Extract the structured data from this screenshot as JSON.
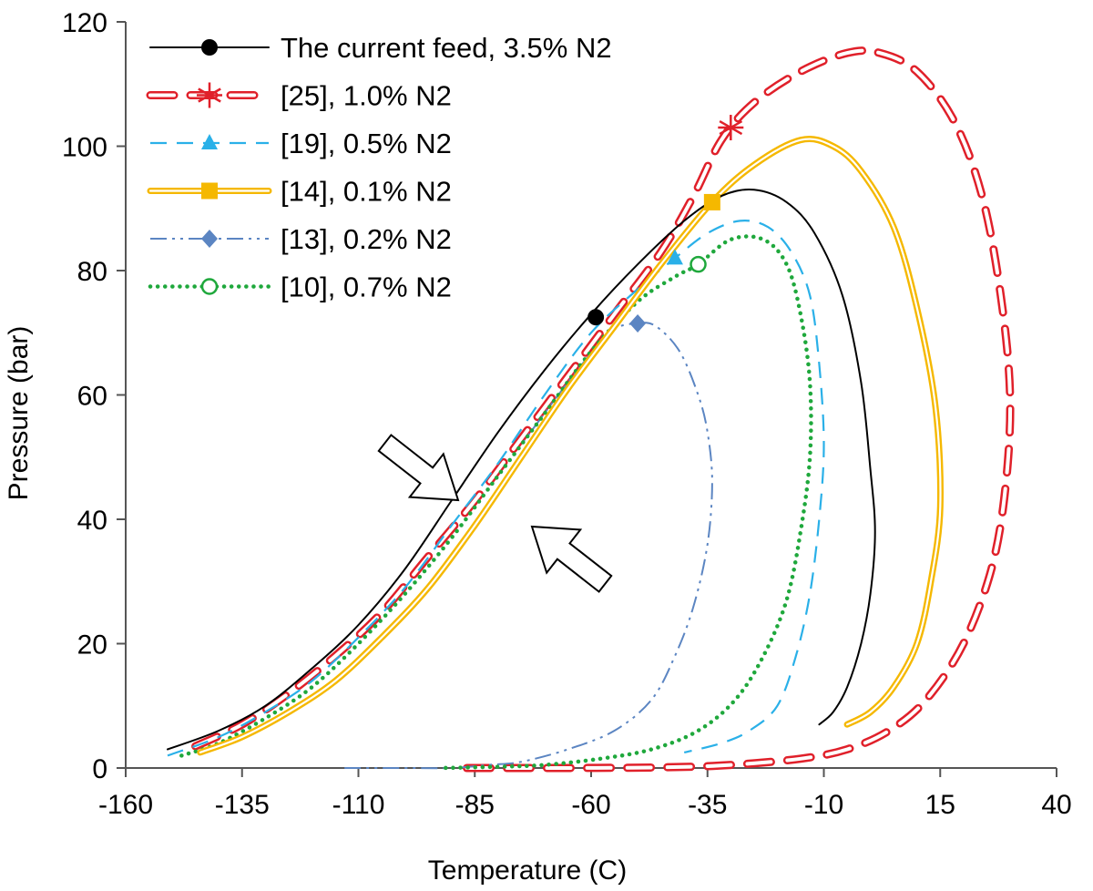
{
  "chart_data": {
    "type": "line",
    "title": "",
    "xlabel": "Temperature  (C)",
    "ylabel": "Pressure  (bar)",
    "xlim": [
      -160,
      40
    ],
    "ylim": [
      0,
      120
    ],
    "xticks": [
      -160,
      -135,
      -110,
      -85,
      -60,
      -35,
      -10,
      15,
      40
    ],
    "yticks": [
      0,
      20,
      40,
      60,
      80,
      100,
      120
    ],
    "grid": false,
    "legend_position": "top-left",
    "series": [
      {
        "name": "The current feed, 3.5% N2",
        "color": "#000000",
        "style": "solid",
        "marker": "circle",
        "critical_point": [
          -59,
          72.5
        ],
        "points": [
          [
            -151,
            3
          ],
          [
            -140,
            6
          ],
          [
            -130,
            10
          ],
          [
            -120,
            16
          ],
          [
            -110,
            23
          ],
          [
            -100,
            32
          ],
          [
            -90,
            43
          ],
          [
            -80,
            54
          ],
          [
            -70,
            64
          ],
          [
            -60,
            73
          ],
          [
            -50,
            81
          ],
          [
            -40,
            88
          ],
          [
            -32,
            92
          ],
          [
            -25,
            93
          ],
          [
            -18,
            91
          ],
          [
            -12,
            86
          ],
          [
            -6,
            76
          ],
          [
            -2,
            62
          ],
          [
            0,
            48
          ],
          [
            1,
            38
          ],
          [
            0,
            28
          ],
          [
            -2,
            20
          ],
          [
            -5,
            13
          ],
          [
            -8,
            9
          ],
          [
            -11,
            7
          ]
        ]
      },
      {
        "name": "[25], 1.0% N2",
        "color": "#e0202a",
        "style": "dashed-double",
        "marker": "asterisk",
        "critical_point": [
          -30,
          103
        ],
        "points": [
          [
            -145,
            3.5
          ],
          [
            -135,
            7
          ],
          [
            -125,
            12
          ],
          [
            -115,
            18
          ],
          [
            -105,
            25
          ],
          [
            -95,
            34
          ],
          [
            -85,
            43
          ],
          [
            -75,
            53
          ],
          [
            -65,
            63
          ],
          [
            -55,
            73
          ],
          [
            -45,
            83
          ],
          [
            -38,
            92
          ],
          [
            -32,
            101
          ],
          [
            -25,
            107
          ],
          [
            -15,
            112
          ],
          [
            -5,
            115
          ],
          [
            2,
            115
          ],
          [
            10,
            112
          ],
          [
            18,
            104
          ],
          [
            24,
            92
          ],
          [
            28,
            76
          ],
          [
            30,
            60
          ],
          [
            29,
            45
          ],
          [
            26,
            32
          ],
          [
            20,
            20
          ],
          [
            12,
            11
          ],
          [
            4,
            6
          ],
          [
            -5,
            3
          ],
          [
            -15,
            1.5
          ],
          [
            -30,
            0.5
          ],
          [
            -45,
            0.1
          ],
          [
            -70,
            0
          ],
          [
            -90,
            0
          ]
        ]
      },
      {
        "name": "[19], 0.5% N2",
        "color": "#2ab0e8",
        "style": "dashed",
        "marker": "triangle",
        "critical_point": [
          -42,
          82
        ],
        "points": [
          [
            -151,
            2
          ],
          [
            -140,
            5
          ],
          [
            -130,
            9
          ],
          [
            -120,
            14
          ],
          [
            -110,
            21
          ],
          [
            -100,
            29
          ],
          [
            -90,
            39
          ],
          [
            -80,
            49
          ],
          [
            -70,
            60
          ],
          [
            -60,
            70
          ],
          [
            -50,
            77
          ],
          [
            -42,
            82
          ],
          [
            -35,
            86
          ],
          [
            -28,
            88
          ],
          [
            -22,
            87
          ],
          [
            -17,
            83
          ],
          [
            -13,
            76
          ],
          [
            -11,
            65
          ],
          [
            -10,
            52
          ],
          [
            -11,
            40
          ],
          [
            -13,
            28
          ],
          [
            -16,
            18
          ],
          [
            -20,
            10
          ],
          [
            -26,
            6
          ],
          [
            -32,
            4
          ],
          [
            -40,
            2.5
          ]
        ]
      },
      {
        "name": "[14], 0.1% N2",
        "color": "#f5b800",
        "style": "double",
        "marker": "square",
        "critical_point": [
          -34,
          91
        ],
        "points": [
          [
            -144,
            2.5
          ],
          [
            -135,
            5
          ],
          [
            -125,
            9
          ],
          [
            -115,
            14
          ],
          [
            -105,
            21
          ],
          [
            -95,
            29
          ],
          [
            -85,
            39
          ],
          [
            -75,
            50
          ],
          [
            -65,
            61
          ],
          [
            -55,
            71
          ],
          [
            -45,
            81
          ],
          [
            -34,
            91
          ],
          [
            -25,
            97
          ],
          [
            -15,
            101
          ],
          [
            -8,
            100
          ],
          [
            -2,
            96
          ],
          [
            5,
            87
          ],
          [
            10,
            74
          ],
          [
            14,
            58
          ],
          [
            15,
            42
          ],
          [
            13,
            30
          ],
          [
            10,
            20
          ],
          [
            5,
            13
          ],
          [
            0,
            9
          ],
          [
            -5,
            7
          ]
        ]
      },
      {
        "name": "[13], 0.2% N2",
        "color": "#5b85c2",
        "style": "dashdotdot",
        "marker": "diamond",
        "critical_point": [
          -50,
          71.5
        ],
        "points": [
          [
            -113,
            0
          ],
          [
            -100,
            0
          ],
          [
            -90,
            0
          ],
          [
            -82,
            0.5
          ],
          [
            -75,
            1
          ],
          [
            -65,
            3
          ],
          [
            -55,
            6
          ],
          [
            -47,
            11
          ],
          [
            -42,
            18
          ],
          [
            -38,
            26
          ],
          [
            -35,
            36
          ],
          [
            -34,
            46
          ],
          [
            -35,
            54
          ],
          [
            -37,
            60
          ],
          [
            -41,
            67
          ],
          [
            -46,
            71
          ],
          [
            -50,
            71.5
          ],
          [
            -56,
            70
          ],
          [
            -65,
            62
          ],
          [
            -75,
            52
          ]
        ]
      },
      {
        "name": "[10], 0.7% N2",
        "color": "#1fa83c",
        "style": "dotted",
        "marker": "open-circle",
        "critical_point": [
          -37,
          81
        ],
        "points": [
          [
            -148,
            2
          ],
          [
            -140,
            4
          ],
          [
            -130,
            8
          ],
          [
            -120,
            13
          ],
          [
            -110,
            20
          ],
          [
            -100,
            28
          ],
          [
            -90,
            37
          ],
          [
            -80,
            47
          ],
          [
            -70,
            57
          ],
          [
            -60,
            67
          ],
          [
            -50,
            75
          ],
          [
            -42,
            79
          ],
          [
            -37,
            81
          ],
          [
            -30,
            85
          ],
          [
            -23,
            85
          ],
          [
            -18,
            81
          ],
          [
            -15,
            73
          ],
          [
            -13,
            62
          ],
          [
            -13,
            50
          ],
          [
            -15,
            38
          ],
          [
            -18,
            27
          ],
          [
            -23,
            18
          ],
          [
            -29,
            11
          ],
          [
            -37,
            6
          ],
          [
            -47,
            3
          ],
          [
            -58,
            1.5
          ],
          [
            -70,
            0.5
          ],
          [
            -80,
            0.2
          ],
          [
            -92,
            0
          ]
        ]
      }
    ],
    "annotations": [
      {
        "type": "arrow",
        "direction": "down-right",
        "description": "open arrow"
      },
      {
        "type": "arrow",
        "direction": "up-left",
        "description": "open arrow"
      }
    ]
  }
}
